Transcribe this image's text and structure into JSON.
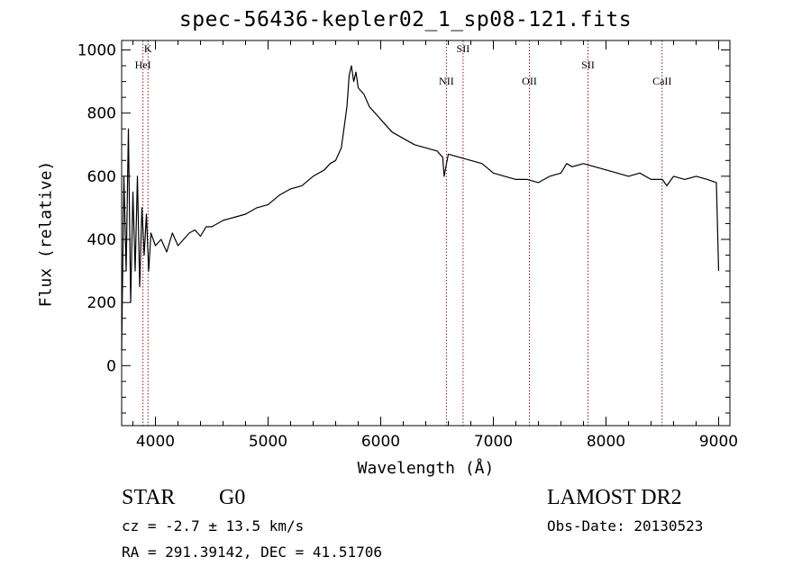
{
  "header": {
    "title": "spec-56436-kepler02_1_sp08-121.fits"
  },
  "info": {
    "class_text": "STAR",
    "subclass_text": "G0",
    "survey_text": "LAMOST DR2",
    "cz_text": "cz = -2.7 ± 13.5 km/s",
    "obsdate_text": "Obs-Date: 20130523",
    "radec_text": "RA = 291.39142, DEC =  41.51706"
  },
  "chart_data": {
    "type": "line",
    "title": "spec-56436-kepler02_1_sp08-121.fits",
    "xlabel": "Wavelength (Å)",
    "ylabel": "Flux (relative)",
    "xlim": [
      3700,
      9100
    ],
    "ylim": [
      -190,
      1030
    ],
    "xticks": [
      4000,
      5000,
      6000,
      7000,
      8000,
      9000
    ],
    "yticks": [
      0,
      200,
      400,
      600,
      800,
      1000
    ],
    "grid": false,
    "line_color": "#000000",
    "marker_color": "#8b1a1a",
    "lines": [
      {
        "label": "K",
        "wavelength": 3934
      },
      {
        "label": "HeI",
        "wavelength": 3889
      },
      {
        "label": "NII",
        "wavelength": 6583
      },
      {
        "label": "SII",
        "wavelength": 6731
      },
      {
        "label": "OII",
        "wavelength": 7320
      },
      {
        "label": "SII",
        "wavelength": 7840
      },
      {
        "label": "CaII",
        "wavelength": 8498
      }
    ],
    "series": [
      {
        "x": [
          3700,
          3720,
          3740,
          3760,
          3780,
          3800,
          3820,
          3840,
          3860,
          3880,
          3900,
          3920,
          3940,
          3960,
          3980,
          4000,
          4050,
          4100,
          4150,
          4200,
          4250,
          4300,
          4350,
          4400,
          4450,
          4500,
          4600,
          4700,
          4800,
          4900,
          5000,
          5100,
          5200,
          5300,
          5400,
          5500,
          5550,
          5600,
          5650,
          5700,
          5720,
          5740,
          5760,
          5780,
          5800,
          5850,
          5900,
          5950,
          6000,
          6100,
          6200,
          6300,
          6400,
          6500,
          6550,
          6563,
          6600,
          6700,
          6800,
          6900,
          7000,
          7100,
          7200,
          7300,
          7400,
          7450,
          7500,
          7600,
          7650,
          7700,
          7800,
          7900,
          8000,
          8100,
          8200,
          8300,
          8400,
          8500,
          8540,
          8600,
          8700,
          8800,
          8900,
          8980,
          9000
        ],
        "y": [
          50,
          600,
          300,
          750,
          200,
          550,
          300,
          600,
          250,
          500,
          350,
          480,
          300,
          420,
          400,
          380,
          400,
          360,
          420,
          380,
          400,
          420,
          430,
          410,
          440,
          440,
          460,
          470,
          480,
          500,
          510,
          540,
          560,
          570,
          600,
          620,
          640,
          650,
          690,
          820,
          920,
          950,
          900,
          930,
          880,
          860,
          820,
          800,
          780,
          740,
          720,
          700,
          690,
          680,
          660,
          600,
          670,
          660,
          650,
          640,
          610,
          600,
          590,
          590,
          580,
          590,
          600,
          610,
          640,
          630,
          640,
          630,
          620,
          610,
          600,
          610,
          590,
          590,
          570,
          600,
          590,
          600,
          590,
          580,
          300
        ]
      }
    ]
  }
}
